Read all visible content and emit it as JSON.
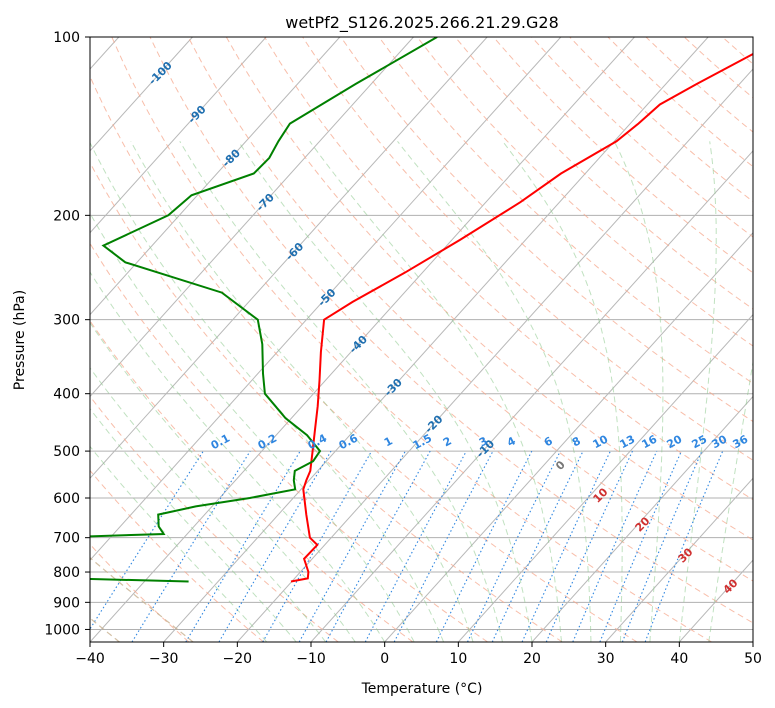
{
  "chart_data": {
    "type": "line",
    "title": "wetPf2_S126.2025.266.21.29.G28",
    "xlabel": "Temperature (°C)",
    "ylabel": "Pressure (hPa)",
    "xlim": [
      -40,
      50
    ],
    "ylim": [
      1050,
      100
    ],
    "y_scale": "log",
    "x_ticks": [
      -40,
      -30,
      -20,
      -10,
      0,
      10,
      20,
      30,
      40,
      50
    ],
    "y_ticks": [
      100,
      200,
      300,
      400,
      500,
      600,
      700,
      800,
      900,
      1000
    ],
    "grid": true,
    "isotherm_labels": [
      -100,
      -90,
      -80,
      -70,
      -60,
      -50,
      -40,
      -30,
      -20,
      -10
    ],
    "mixing_ratio_labels": [
      "0.1",
      "0.2",
      "0.4",
      "0.6",
      "1",
      "1.5",
      "2",
      "3",
      "4",
      "6",
      "8",
      "10",
      "13",
      "16",
      "20",
      "25",
      "30",
      "36"
    ],
    "dry_adiabat_labels": [
      "10",
      "20",
      "30",
      "40"
    ],
    "zero_label": "0",
    "series": [
      {
        "name": "",
        "color": "#ff0000",
        "points": [
          [
            -19.6,
            100
          ],
          [
            -25.8,
            120
          ],
          [
            -28.3,
            130
          ],
          [
            -28.9,
            140
          ],
          [
            -29.7,
            150
          ],
          [
            -33.3,
            170
          ],
          [
            -35.3,
            190
          ],
          [
            -38.9,
            220
          ],
          [
            -42.4,
            250
          ],
          [
            -45.9,
            280
          ],
          [
            -47.6,
            300
          ],
          [
            -44.1,
            340
          ],
          [
            -40.8,
            380
          ],
          [
            -37.9,
            420
          ],
          [
            -35.4,
            460
          ],
          [
            -33.1,
            500
          ],
          [
            -31.0,
            540
          ],
          [
            -30.4,
            560
          ],
          [
            -29.7,
            580
          ],
          [
            -26.2,
            640
          ],
          [
            -22.9,
            700
          ],
          [
            -21.0,
            720
          ],
          [
            -21.1,
            760
          ],
          [
            -18.9,
            800
          ],
          [
            -18.2,
            820
          ],
          [
            -20.1,
            830
          ]
        ]
      },
      {
        "name": "",
        "color": "#008000",
        "points": [
          [
            -66.8,
            100
          ],
          [
            -72.1,
            120
          ],
          [
            -76.2,
            140
          ],
          [
            -75.6,
            150
          ],
          [
            -74.8,
            160
          ],
          [
            -75.0,
            170
          ],
          [
            -80.8,
            185
          ],
          [
            -81.5,
            200
          ],
          [
            -86.6,
            225
          ],
          [
            -81.6,
            240
          ],
          [
            -64.8,
            270
          ],
          [
            -56.6,
            300
          ],
          [
            -53.0,
            330
          ],
          [
            -49.3,
            370
          ],
          [
            -46.6,
            400
          ],
          [
            -40.8,
            440
          ],
          [
            -35.8,
            470
          ],
          [
            -32.1,
            500
          ],
          [
            -31.8,
            520
          ],
          [
            -33.1,
            540
          ],
          [
            -32.1,
            560
          ],
          [
            -30.8,
            580
          ],
          [
            -35.9,
            600
          ],
          [
            -42.2,
            620
          ],
          [
            -46.3,
            640
          ],
          [
            -44.8,
            670
          ],
          [
            -43.2,
            690
          ],
          [
            -73.7,
            710
          ],
          [
            -81.3,
            720
          ],
          [
            -72.6,
            740
          ],
          [
            -68.4,
            760
          ],
          [
            -67.1,
            780
          ],
          [
            -63.8,
            800
          ],
          [
            -63.8,
            810
          ],
          [
            -61.8,
            815
          ],
          [
            -47.5,
            822
          ],
          [
            -34.0,
            830
          ]
        ]
      }
    ]
  }
}
